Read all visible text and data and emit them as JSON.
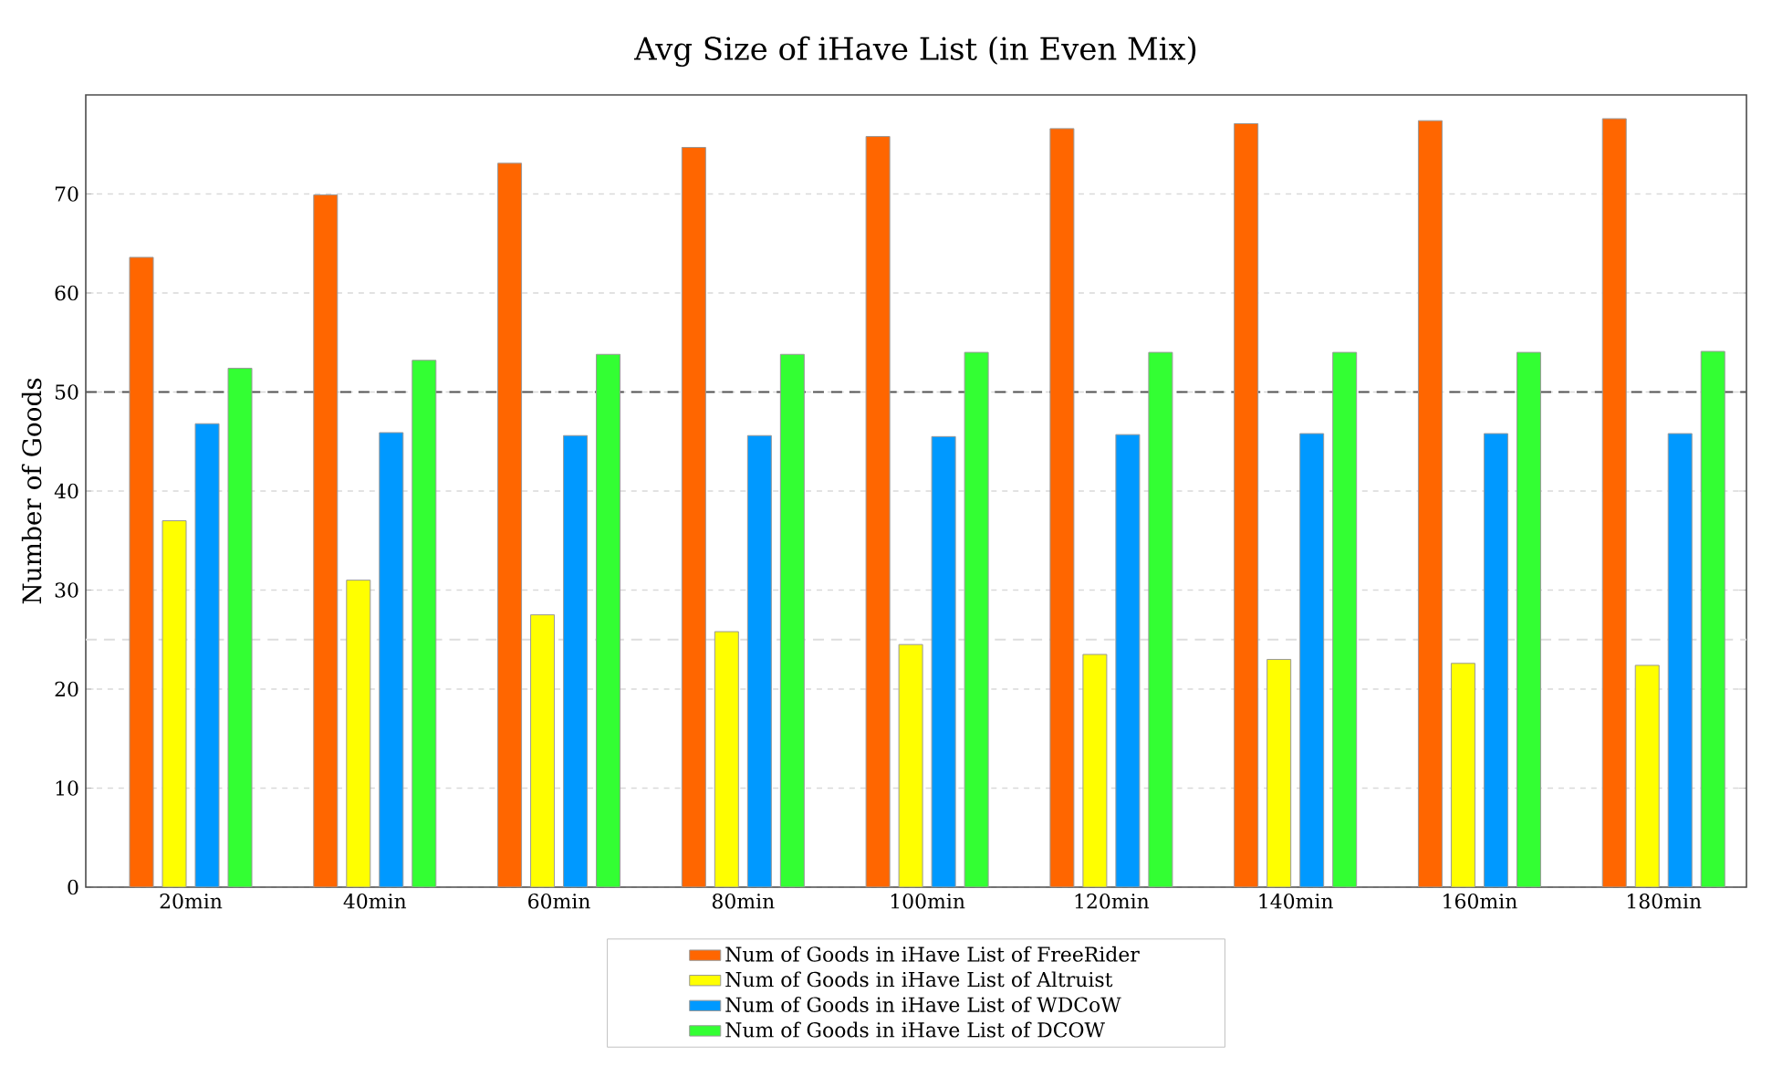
{
  "chart_data": {
    "type": "bar",
    "title": "Avg Size of iHave List (in Even Mix)",
    "ylabel": "Number of Goods",
    "categories": [
      "20min",
      "40min",
      "60min",
      "80min",
      "100min",
      "120min",
      "140min",
      "160min",
      "180min"
    ],
    "series": [
      {
        "name": "Num of Goods in iHave List of FreeRider",
        "color": "#ff6600",
        "values": [
          63.6,
          69.9,
          73.1,
          74.7,
          75.8,
          76.6,
          77.1,
          77.4,
          77.6
        ]
      },
      {
        "name": "Num of Goods in iHave List of Altruist",
        "color": "#ffff00",
        "values": [
          37.0,
          31.0,
          27.5,
          25.8,
          24.5,
          23.5,
          23.0,
          22.6,
          22.4
        ]
      },
      {
        "name": "Num of Goods in iHave List of  WDCoW",
        "color": "#0099ff",
        "values": [
          46.8,
          45.9,
          45.6,
          45.6,
          45.5,
          45.7,
          45.8,
          45.8,
          45.8
        ]
      },
      {
        "name": "Num of Goods in iHave List of  DCOW",
        "color": "#33ff33",
        "values": [
          52.4,
          53.2,
          53.8,
          53.8,
          54.0,
          54.0,
          54.0,
          54.0,
          54.1
        ]
      }
    ],
    "ylim": [
      0,
      80
    ],
    "yticks": [
      0,
      10,
      20,
      30,
      40,
      50,
      60,
      70
    ],
    "grid": "y",
    "legend": "bottom",
    "ref_lines": [
      {
        "axis": "y",
        "value": 50,
        "color": "#555555",
        "line_style": "dashed"
      },
      {
        "axis": "y",
        "value": 25,
        "color": "#dddddd",
        "line_style": "dashed"
      }
    ]
  }
}
